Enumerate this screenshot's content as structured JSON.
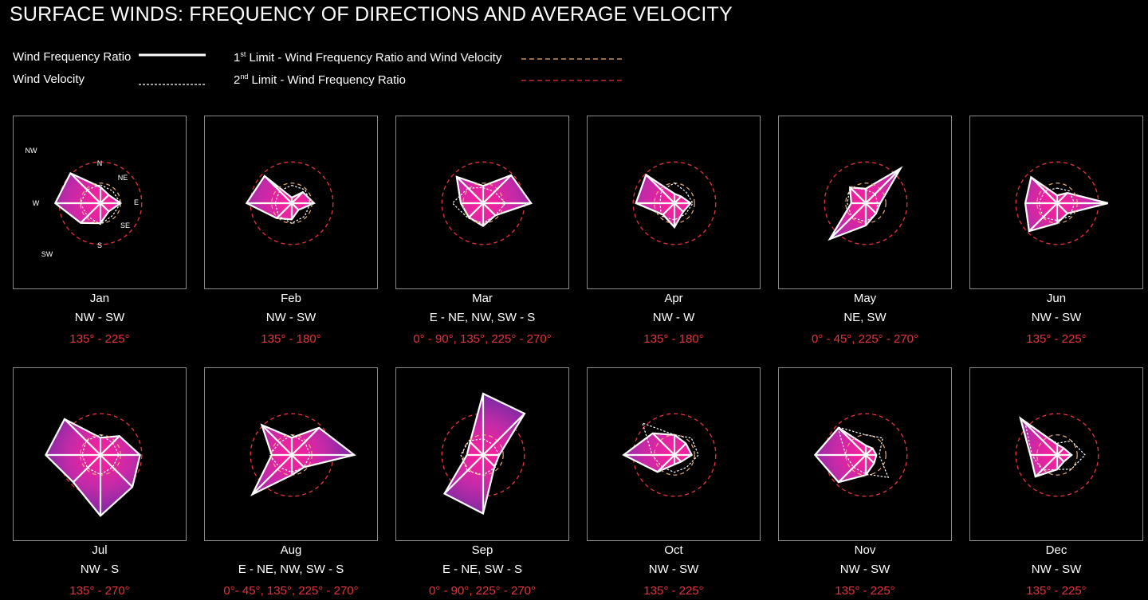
{
  "header": {
    "title": "SURFACE WINDS: FREQUENCY OF DIRECTIONS AND AVERAGE VELOCITY"
  },
  "legend": {
    "frequency": "Wind Frequency Ratio",
    "velocity": "Wind Velocity",
    "limit1_sup": "st",
    "limit1_pre": "1",
    "limit1_text": " Limit - Wind Frequency Ratio and Wind Velocity",
    "limit2_sup": "nd",
    "limit2_pre": "2",
    "limit2_text": " Limit - Wind Frequency Ratio"
  },
  "colors": {
    "background": "#000000",
    "fill_center": "#ff1f9a",
    "fill_edge": "#5b2aa0",
    "limit1": "#e8b07a",
    "limit2": "#e8323c",
    "degree_text": "#e8323c"
  },
  "compass_labels": {
    "N": "N",
    "NE": "NE",
    "E": "E",
    "SE": "SE",
    "S": "S",
    "SW": "SW",
    "W": "W",
    "NW": "NW"
  },
  "chart_data": {
    "type": "radar",
    "directions": [
      "N",
      "NE",
      "E",
      "SE",
      "S",
      "SW",
      "W",
      "NW"
    ],
    "limit1_radius": 0.36,
    "limit2_radius": 0.74,
    "months": [
      {
        "month": "Jan",
        "directions": "NW - SW",
        "degrees": "135° - 225°",
        "frequency": [
          0.29,
          0.21,
          0.36,
          0.21,
          0.36,
          0.5,
          0.81,
          0.76
        ],
        "velocity": [
          0.33,
          0.31,
          0.36,
          0.31,
          0.38,
          0.33,
          0.36,
          0.34
        ]
      },
      {
        "month": "Feb",
        "directions": "NW - SW",
        "degrees": "135° - 180°",
        "frequency": [
          0.1,
          0.28,
          0.4,
          0.17,
          0.29,
          0.38,
          0.81,
          0.69
        ],
        "velocity": [
          0.32,
          0.34,
          0.33,
          0.33,
          0.36,
          0.33,
          0.3,
          0.31
        ]
      },
      {
        "month": "Mar",
        "directions": "E - NE, NW, SW - S",
        "degrees": "0° - 90°, 135°, 225° - 270°",
        "frequency": [
          0.31,
          0.71,
          0.86,
          0.31,
          0.41,
          0.36,
          0.4,
          0.67
        ],
        "velocity": [
          0.28,
          0.29,
          0.4,
          0.31,
          0.36,
          0.38,
          0.55,
          0.38
        ]
      },
      {
        "month": "Apr",
        "directions": "NW - W",
        "degrees": "135° - 180°",
        "frequency": [
          0.17,
          0.17,
          0.29,
          0.22,
          0.43,
          0.29,
          0.69,
          0.72
        ],
        "velocity": [
          0.36,
          0.29,
          0.33,
          0.28,
          0.3,
          0.33,
          0.26,
          0.33
        ]
      },
      {
        "month": "May",
        "directions": "NE, SW",
        "degrees": "0° - 45°, 225° - 270°",
        "frequency": [
          0.26,
          0.88,
          0.26,
          0.26,
          0.4,
          0.91,
          0.26,
          0.4
        ],
        "velocity": [
          0.24,
          0.24,
          0.21,
          0.27,
          0.33,
          0.36,
          0.33,
          0.4
        ]
      },
      {
        "month": "Jun",
        "directions": "NW - SW",
        "degrees": "135° - 225°",
        "frequency": [
          0.14,
          0.26,
          0.91,
          0.26,
          0.36,
          0.71,
          0.57,
          0.66
        ],
        "velocity": [
          0.27,
          0.31,
          0.31,
          0.33,
          0.31,
          0.36,
          0.33,
          0.31
        ]
      },
      {
        "month": "Jul",
        "directions": "NW - S",
        "degrees": "135° - 270°",
        "frequency": [
          0.31,
          0.48,
          0.71,
          0.81,
          1.09,
          0.69,
          0.98,
          0.91
        ],
        "velocity": [
          0.36,
          0.31,
          0.33,
          0.31,
          0.35,
          0.33,
          0.33,
          0.36
        ]
      },
      {
        "month": "Aug",
        "directions": "E - NE, NW, SW - S",
        "degrees": "0°- 45°, 135°, 225° - 270°",
        "frequency": [
          0.31,
          0.69,
          1.12,
          0.31,
          0.36,
          1.0,
          0.36,
          0.76
        ],
        "velocity": [
          0.36,
          0.33,
          0.33,
          0.31,
          0.31,
          0.31,
          0.4,
          0.31
        ]
      },
      {
        "month": "Sep",
        "directions": "E - NE, SW - S",
        "degrees": "0° - 90°, 225° - 270°",
        "frequency": [
          1.1,
          1.05,
          0.29,
          0.29,
          1.05,
          0.98,
          0.29,
          0.33
        ],
        "velocity": [
          0.29,
          0.26,
          0.29,
          0.31,
          0.36,
          0.4,
          0.4,
          0.36
        ]
      },
      {
        "month": "Oct",
        "directions": "NW - SW",
        "degrees": "135° - 225°",
        "frequency": [
          0.36,
          0.29,
          0.31,
          0.17,
          0.17,
          0.43,
          0.91,
          0.55
        ],
        "velocity": [
          0.36,
          0.43,
          0.43,
          0.31,
          0.31,
          0.31,
          0.4,
          0.81
        ]
      },
      {
        "month": "Nov",
        "directions": "NW - SW",
        "degrees": "135° - 225°",
        "frequency": [
          0.17,
          0.17,
          0.19,
          0.21,
          0.36,
          0.69,
          0.91,
          0.69
        ],
        "velocity": [
          0.36,
          0.43,
          0.24,
          0.57,
          0.34,
          0.31,
          0.36,
          0.71
        ]
      },
      {
        "month": "Dec",
        "directions": "NW - SW",
        "degrees": "135° - 225°",
        "frequency": [
          0.19,
          0.17,
          0.26,
          0.17,
          0.26,
          0.55,
          0.48,
          0.93
        ],
        "velocity": [
          0.21,
          0.36,
          0.5,
          0.36,
          0.26,
          0.38,
          0.45,
          0.81
        ]
      }
    ]
  }
}
